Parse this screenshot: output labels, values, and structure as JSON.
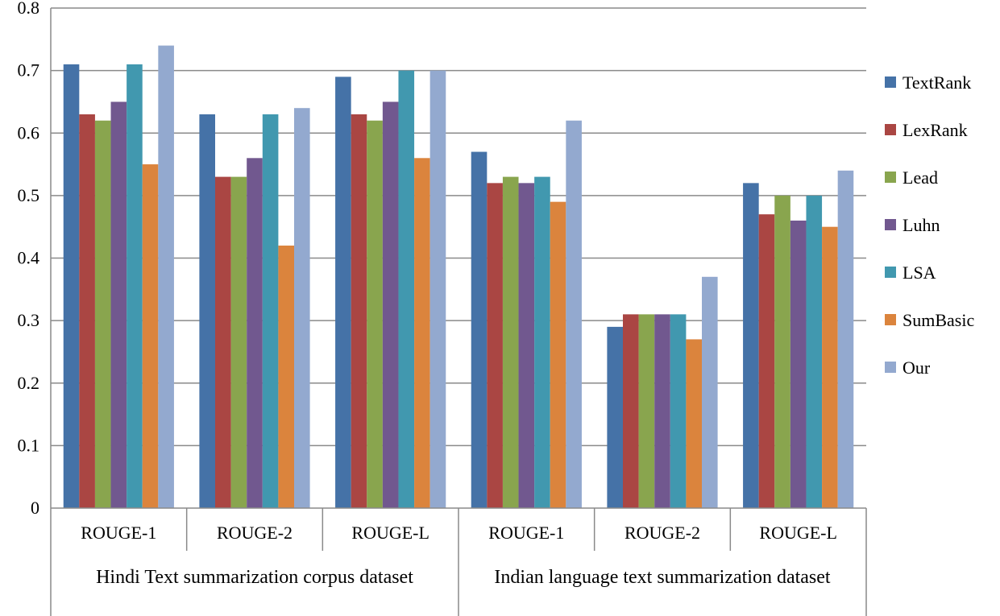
{
  "chart_data": {
    "type": "bar",
    "title": "",
    "xlabel": "",
    "ylabel": "",
    "ylim": [
      0,
      0.8
    ],
    "yticks": [
      0,
      0.1,
      0.2,
      0.3,
      0.4,
      0.5,
      0.6,
      0.7,
      0.8
    ],
    "grid": true,
    "legend_position": "right",
    "categories": [
      "ROUGE-1",
      "ROUGE-2",
      "ROUGE-L",
      "ROUGE-1",
      "ROUGE-2",
      "ROUGE-L"
    ],
    "groups": [
      {
        "label": "Hindi Text summarization corpus dataset",
        "span": 3
      },
      {
        "label": "Indian language text summarization dataset",
        "span": 3
      }
    ],
    "series": [
      {
        "name": "TextRank",
        "color": "#4572A7",
        "values": [
          0.71,
          0.63,
          0.69,
          0.57,
          0.29,
          0.52
        ]
      },
      {
        "name": "LexRank",
        "color": "#AA4643",
        "values": [
          0.63,
          0.53,
          0.63,
          0.52,
          0.31,
          0.47
        ]
      },
      {
        "name": "Lead",
        "color": "#89A54E",
        "values": [
          0.62,
          0.53,
          0.62,
          0.53,
          0.31,
          0.5
        ]
      },
      {
        "name": "Luhn",
        "color": "#71588F",
        "values": [
          0.65,
          0.56,
          0.65,
          0.52,
          0.31,
          0.46
        ]
      },
      {
        "name": "LSA",
        "color": "#4198AF",
        "values": [
          0.71,
          0.63,
          0.7,
          0.53,
          0.31,
          0.5
        ]
      },
      {
        "name": "SumBasic",
        "color": "#DB843D",
        "values": [
          0.55,
          0.42,
          0.56,
          0.49,
          0.27,
          0.45
        ]
      },
      {
        "name": "Our",
        "color": "#93A9CF",
        "values": [
          0.74,
          0.64,
          0.7,
          0.62,
          0.37,
          0.54
        ]
      }
    ]
  }
}
